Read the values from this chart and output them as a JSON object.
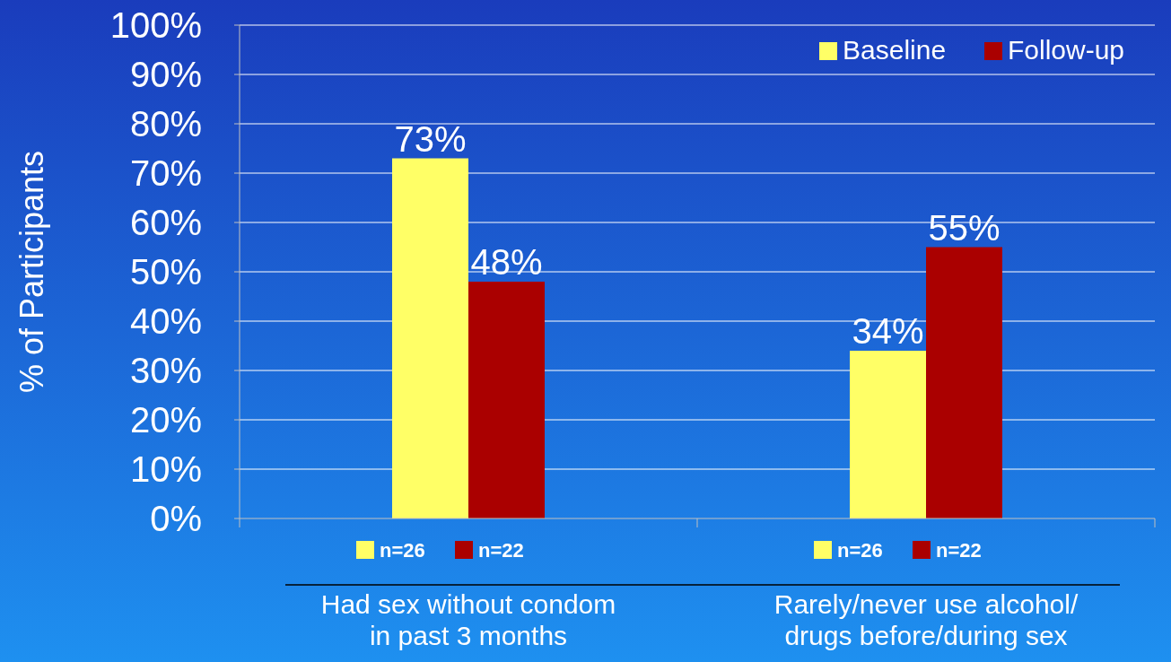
{
  "chart_data": {
    "type": "bar",
    "ylabel": "% of Participants",
    "categories": [
      "Had sex without condom in past 3 months",
      "Rarely/never use alcohol/ drugs before/during sex"
    ],
    "series": [
      {
        "name": "Baseline",
        "color": "#ffff66",
        "values": [
          73,
          34
        ]
      },
      {
        "name": "Follow-up",
        "color": "#aa0000",
        "values": [
          48,
          55
        ]
      }
    ],
    "ylim": [
      0,
      100
    ],
    "yticks": [
      {
        "value": 0,
        "label": "0%"
      },
      {
        "value": 10,
        "label": "10%"
      },
      {
        "value": 20,
        "label": "20%"
      },
      {
        "value": 30,
        "label": "30%"
      },
      {
        "value": 40,
        "label": "40%"
      },
      {
        "value": 50,
        "label": "50%"
      },
      {
        "value": 60,
        "label": "60%"
      },
      {
        "value": 70,
        "label": "70%"
      },
      {
        "value": 80,
        "label": "80%"
      },
      {
        "value": 90,
        "label": "90%"
      },
      {
        "value": 100,
        "label": "100%"
      }
    ],
    "grid": "y",
    "legend": "top right",
    "value_labels": [
      [
        "73%",
        "34%"
      ],
      [
        "48%",
        "55%"
      ]
    ],
    "annotations": [
      "n=26",
      "n=22",
      "n=26",
      "n=22"
    ]
  }
}
